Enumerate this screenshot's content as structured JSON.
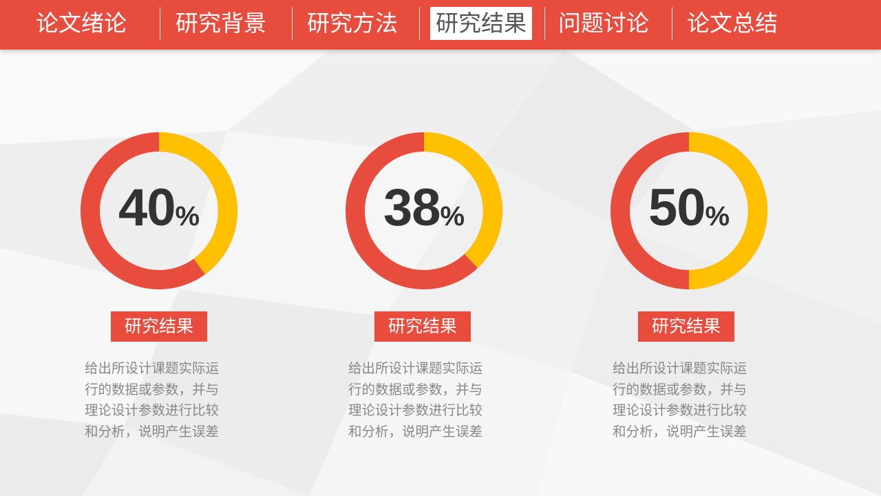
{
  "nav": {
    "items": [
      {
        "label": "论文绪论"
      },
      {
        "label": "研究背景"
      },
      {
        "label": "研究方法"
      },
      {
        "label": "研究结果"
      },
      {
        "label": "问题讨论"
      },
      {
        "label": "论文总结"
      }
    ],
    "active_index": 3
  },
  "colors": {
    "accent_red": "#e84c3d",
    "accent_yellow": "#ffc000",
    "text_dark": "#333333",
    "text_gray": "#888888"
  },
  "cards": [
    {
      "value": "40",
      "percent_sign": "%",
      "fraction": 0.4,
      "title": "研究结果",
      "lines": [
        "给出所设计课题实际运",
        "行的数据或参数，并与",
        "理论设计参数进行比较",
        "和分析，说明产生误差"
      ]
    },
    {
      "value": "38",
      "percent_sign": "%",
      "fraction": 0.38,
      "title": "研究结果",
      "lines": [
        "给出所设计课题实际运",
        "行的数据或参数，并与",
        "理论设计参数进行比较",
        "和分析，说明产生误差"
      ]
    },
    {
      "value": "50",
      "percent_sign": "%",
      "fraction": 0.5,
      "title": "研究结果",
      "lines": [
        "给出所设计课题实际运",
        "行的数据或参数，并与",
        "理论设计参数进行比较",
        "和分析，说明产生误差"
      ]
    }
  ]
}
